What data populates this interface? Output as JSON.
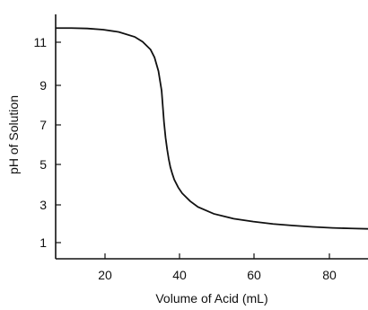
{
  "chart_data": {
    "type": "line",
    "xlabel": "Volume of Acid (mL)",
    "ylabel": "pH of Solution",
    "xlim": [
      10,
      89
    ],
    "ylim": [
      0,
      12.5
    ],
    "x_ticks": [
      20,
      40,
      60,
      80
    ],
    "y_ticks": [
      1,
      3,
      5,
      7,
      9,
      11
    ],
    "grid": false,
    "series": [
      {
        "x": [
          10,
          14,
          18,
          22,
          26,
          30,
          32,
          34,
          35,
          36,
          36.8,
          37.4,
          37.8,
          38.2,
          38.6,
          39,
          39.5,
          40,
          41,
          42,
          44,
          46,
          50,
          55,
          60,
          65,
          70,
          75,
          80,
          85,
          89
        ],
        "y": [
          11.8,
          11.8,
          11.78,
          11.72,
          11.6,
          11.35,
          11.1,
          10.7,
          10.3,
          9.6,
          8.6,
          7.0,
          6.2,
          5.6,
          5.1,
          4.7,
          4.35,
          4.05,
          3.65,
          3.35,
          2.95,
          2.65,
          2.3,
          2.05,
          1.9,
          1.78,
          1.7,
          1.63,
          1.58,
          1.55,
          1.53
        ]
      }
    ]
  }
}
